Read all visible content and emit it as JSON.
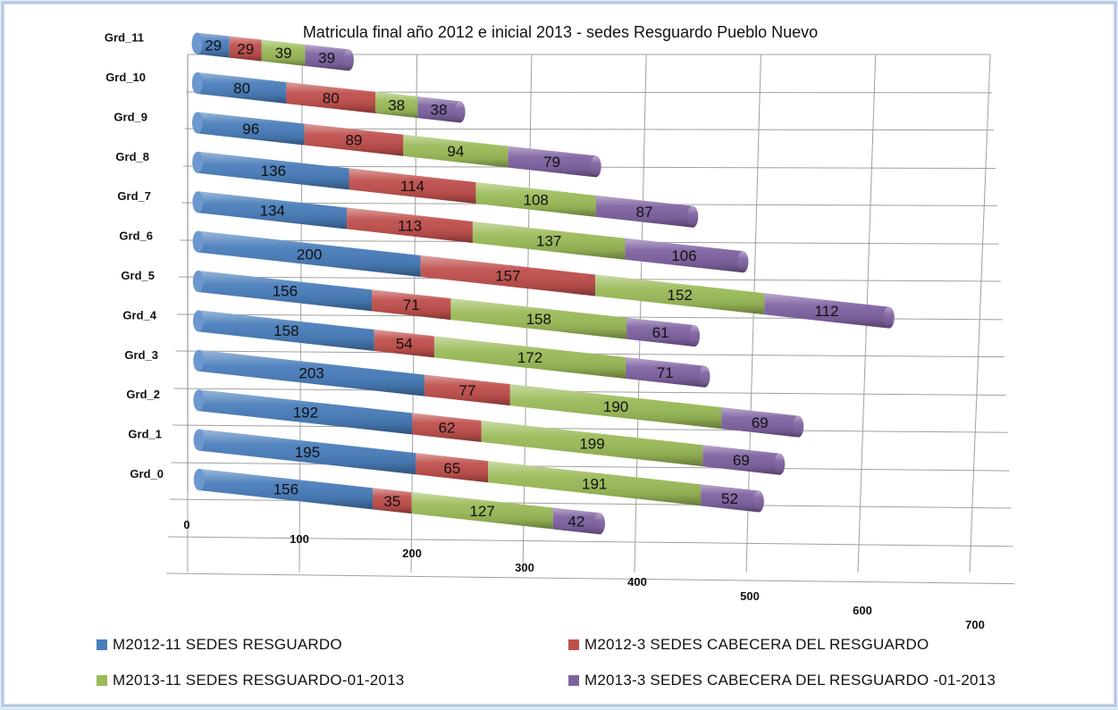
{
  "chart_data": {
    "type": "bar",
    "orientation": "horizontal-stacked-3d-cylinder",
    "title": "Matricula final año 2012 e inicial 2013 - sedes Resguardo Pueblo Nuevo",
    "categories": [
      "Grd_0",
      "Grd_1",
      "Grd_2",
      "Grd_3",
      "Grd_4",
      "Grd_5",
      "Grd_6",
      "Grd_7",
      "Grd_8",
      "Grd_9",
      "Grd_10",
      "Grd_11"
    ],
    "series": [
      {
        "name": "M2012-11 SEDES RESGUARDO",
        "color": "#4a7ebb",
        "values": [
          156,
          195,
          192,
          203,
          158,
          156,
          200,
          134,
          136,
          96,
          80,
          29
        ]
      },
      {
        "name": "M2012-3 SEDES CABECERA DEL RESGUARDO",
        "color": "#c0504d",
        "values": [
          35,
          65,
          62,
          77,
          54,
          71,
          157,
          113,
          114,
          89,
          80,
          29
        ]
      },
      {
        "name": "M2013-11 SEDES RESGUARDO-01-2013",
        "color": "#9bbb59",
        "values": [
          127,
          191,
          199,
          190,
          172,
          158,
          152,
          137,
          108,
          94,
          38,
          39
        ]
      },
      {
        "name": "M2013-3 SEDES CABECERA DEL RESGUARDO -01-2013",
        "color": "#8064a2",
        "values": [
          42,
          52,
          69,
          69,
          71,
          61,
          112,
          106,
          87,
          79,
          38,
          39
        ]
      }
    ],
    "xlim": [
      0,
      700
    ],
    "ticks": [
      0,
      100,
      200,
      300,
      400,
      500,
      600,
      700
    ],
    "grid": true,
    "legend_position": "bottom"
  }
}
